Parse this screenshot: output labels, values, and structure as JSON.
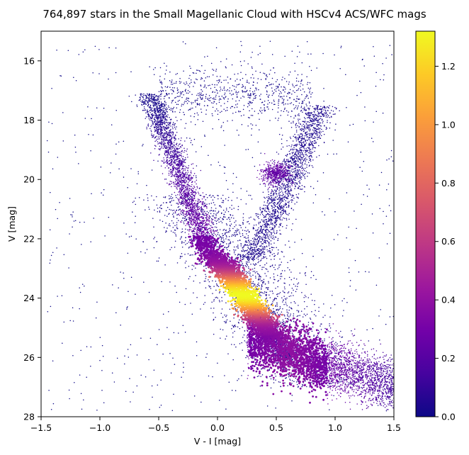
{
  "chart_data": {
    "type": "scatter",
    "subtype": "density-colored scatter (color-magnitude diagram)",
    "title": "764,897 stars in the Small Magellanic Cloud with HSCv4 ACS/WFC mags",
    "xlabel": "V - I [mag]",
    "ylabel": "V [mag]",
    "xlim": [
      -1.5,
      1.5
    ],
    "ylim": [
      28,
      15
    ],
    "y_inverted": true,
    "xticks": [
      -1.5,
      -1.0,
      -0.5,
      0.0,
      0.5,
      1.0,
      1.5
    ],
    "xtick_labels": [
      "−1.5",
      "−1.0",
      "−0.5",
      "0.0",
      "0.5",
      "1.0",
      "1.5"
    ],
    "yticks": [
      16,
      18,
      20,
      22,
      24,
      26,
      28
    ],
    "ytick_labels": [
      "16",
      "18",
      "20",
      "22",
      "24",
      "26",
      "28"
    ],
    "grid": false,
    "colormap": "plasma",
    "colorbar": {
      "min": 0.0,
      "max": 1.32,
      "ticks": [
        0.0,
        0.2,
        0.4,
        0.6,
        0.8,
        1.0,
        1.2
      ],
      "tick_labels": [
        "0.0",
        "0.2",
        "0.4",
        "0.6",
        "0.8",
        "1.0",
        "1.2"
      ],
      "colors": [
        "#0d0887",
        "#46039f",
        "#7201a8",
        "#9c179e",
        "#bd3786",
        "#d8576b",
        "#ed7953",
        "#fb9f3a",
        "#fdca26",
        "#f0f921"
      ]
    },
    "features": [
      {
        "name": "upper main sequence",
        "x": [
          -0.6,
          -0.05
        ],
        "y": [
          17.2,
          22.5
        ],
        "density": 0.25
      },
      {
        "name": "main sequence turnoff peak",
        "x": 0.15,
        "y": 23.8,
        "density": 1.32
      },
      {
        "name": "lower main sequence",
        "x": [
          0.3,
          1.5
        ],
        "y": [
          25.5,
          27.5
        ],
        "density": 0.3
      },
      {
        "name": "red giant branch",
        "x": [
          0.3,
          0.85
        ],
        "y": [
          22.5,
          17.5
        ],
        "density": 0.15
      },
      {
        "name": "red clump",
        "x": 0.5,
        "y": 19.8,
        "density": 0.35
      }
    ]
  }
}
